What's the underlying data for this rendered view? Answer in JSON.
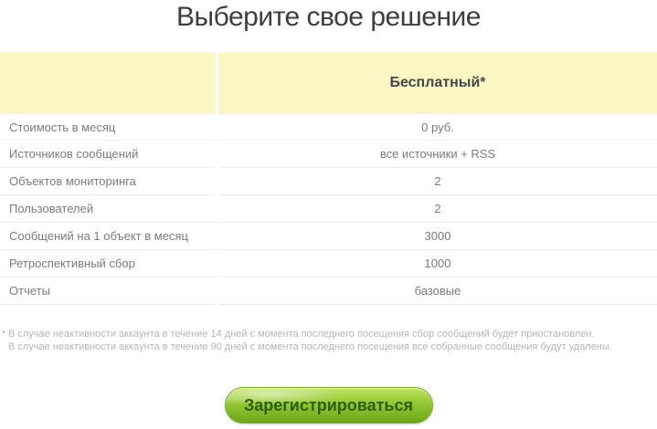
{
  "page": {
    "title": "Выберите свое решение"
  },
  "table": {
    "header": {
      "feature_column": "",
      "plan_name": "Бесплатный*"
    },
    "rows": [
      {
        "label": "Стоимость в месяц",
        "value": "0 руб."
      },
      {
        "label": "Источников сообщений",
        "value": "все источники + RSS"
      },
      {
        "label": "Объектов мониторинга",
        "value": "2"
      },
      {
        "label": "Пользователей",
        "value": "2"
      },
      {
        "label": "Сообщений на 1 объект в месяц",
        "value": "3000"
      },
      {
        "label": "Ретроспективный сбор",
        "value": "1000"
      },
      {
        "label": "Отчеты",
        "value": "базовые"
      }
    ]
  },
  "footnotes": [
    {
      "marker": "*",
      "text": "В случае неактивности аккаунта в течение 14 дней с момента последнего посещения сбор сообщений будет приостановлен."
    },
    {
      "marker": "",
      "text": "В случае неактивности аккаунта в течение 90 дней с момента последнего посещения все собранные сообщения будут удалены."
    }
  ],
  "cta": {
    "register_label": "Зарегистрироваться"
  },
  "colors": {
    "header_bg": "#faf7c5",
    "title_text": "#3e3e3e",
    "row_text": "#7b7b7b",
    "row_divider": "#ededed",
    "footnote_text": "#b6b6b6",
    "button_green": "#8cc32e",
    "button_text": "#2d5f04"
  }
}
